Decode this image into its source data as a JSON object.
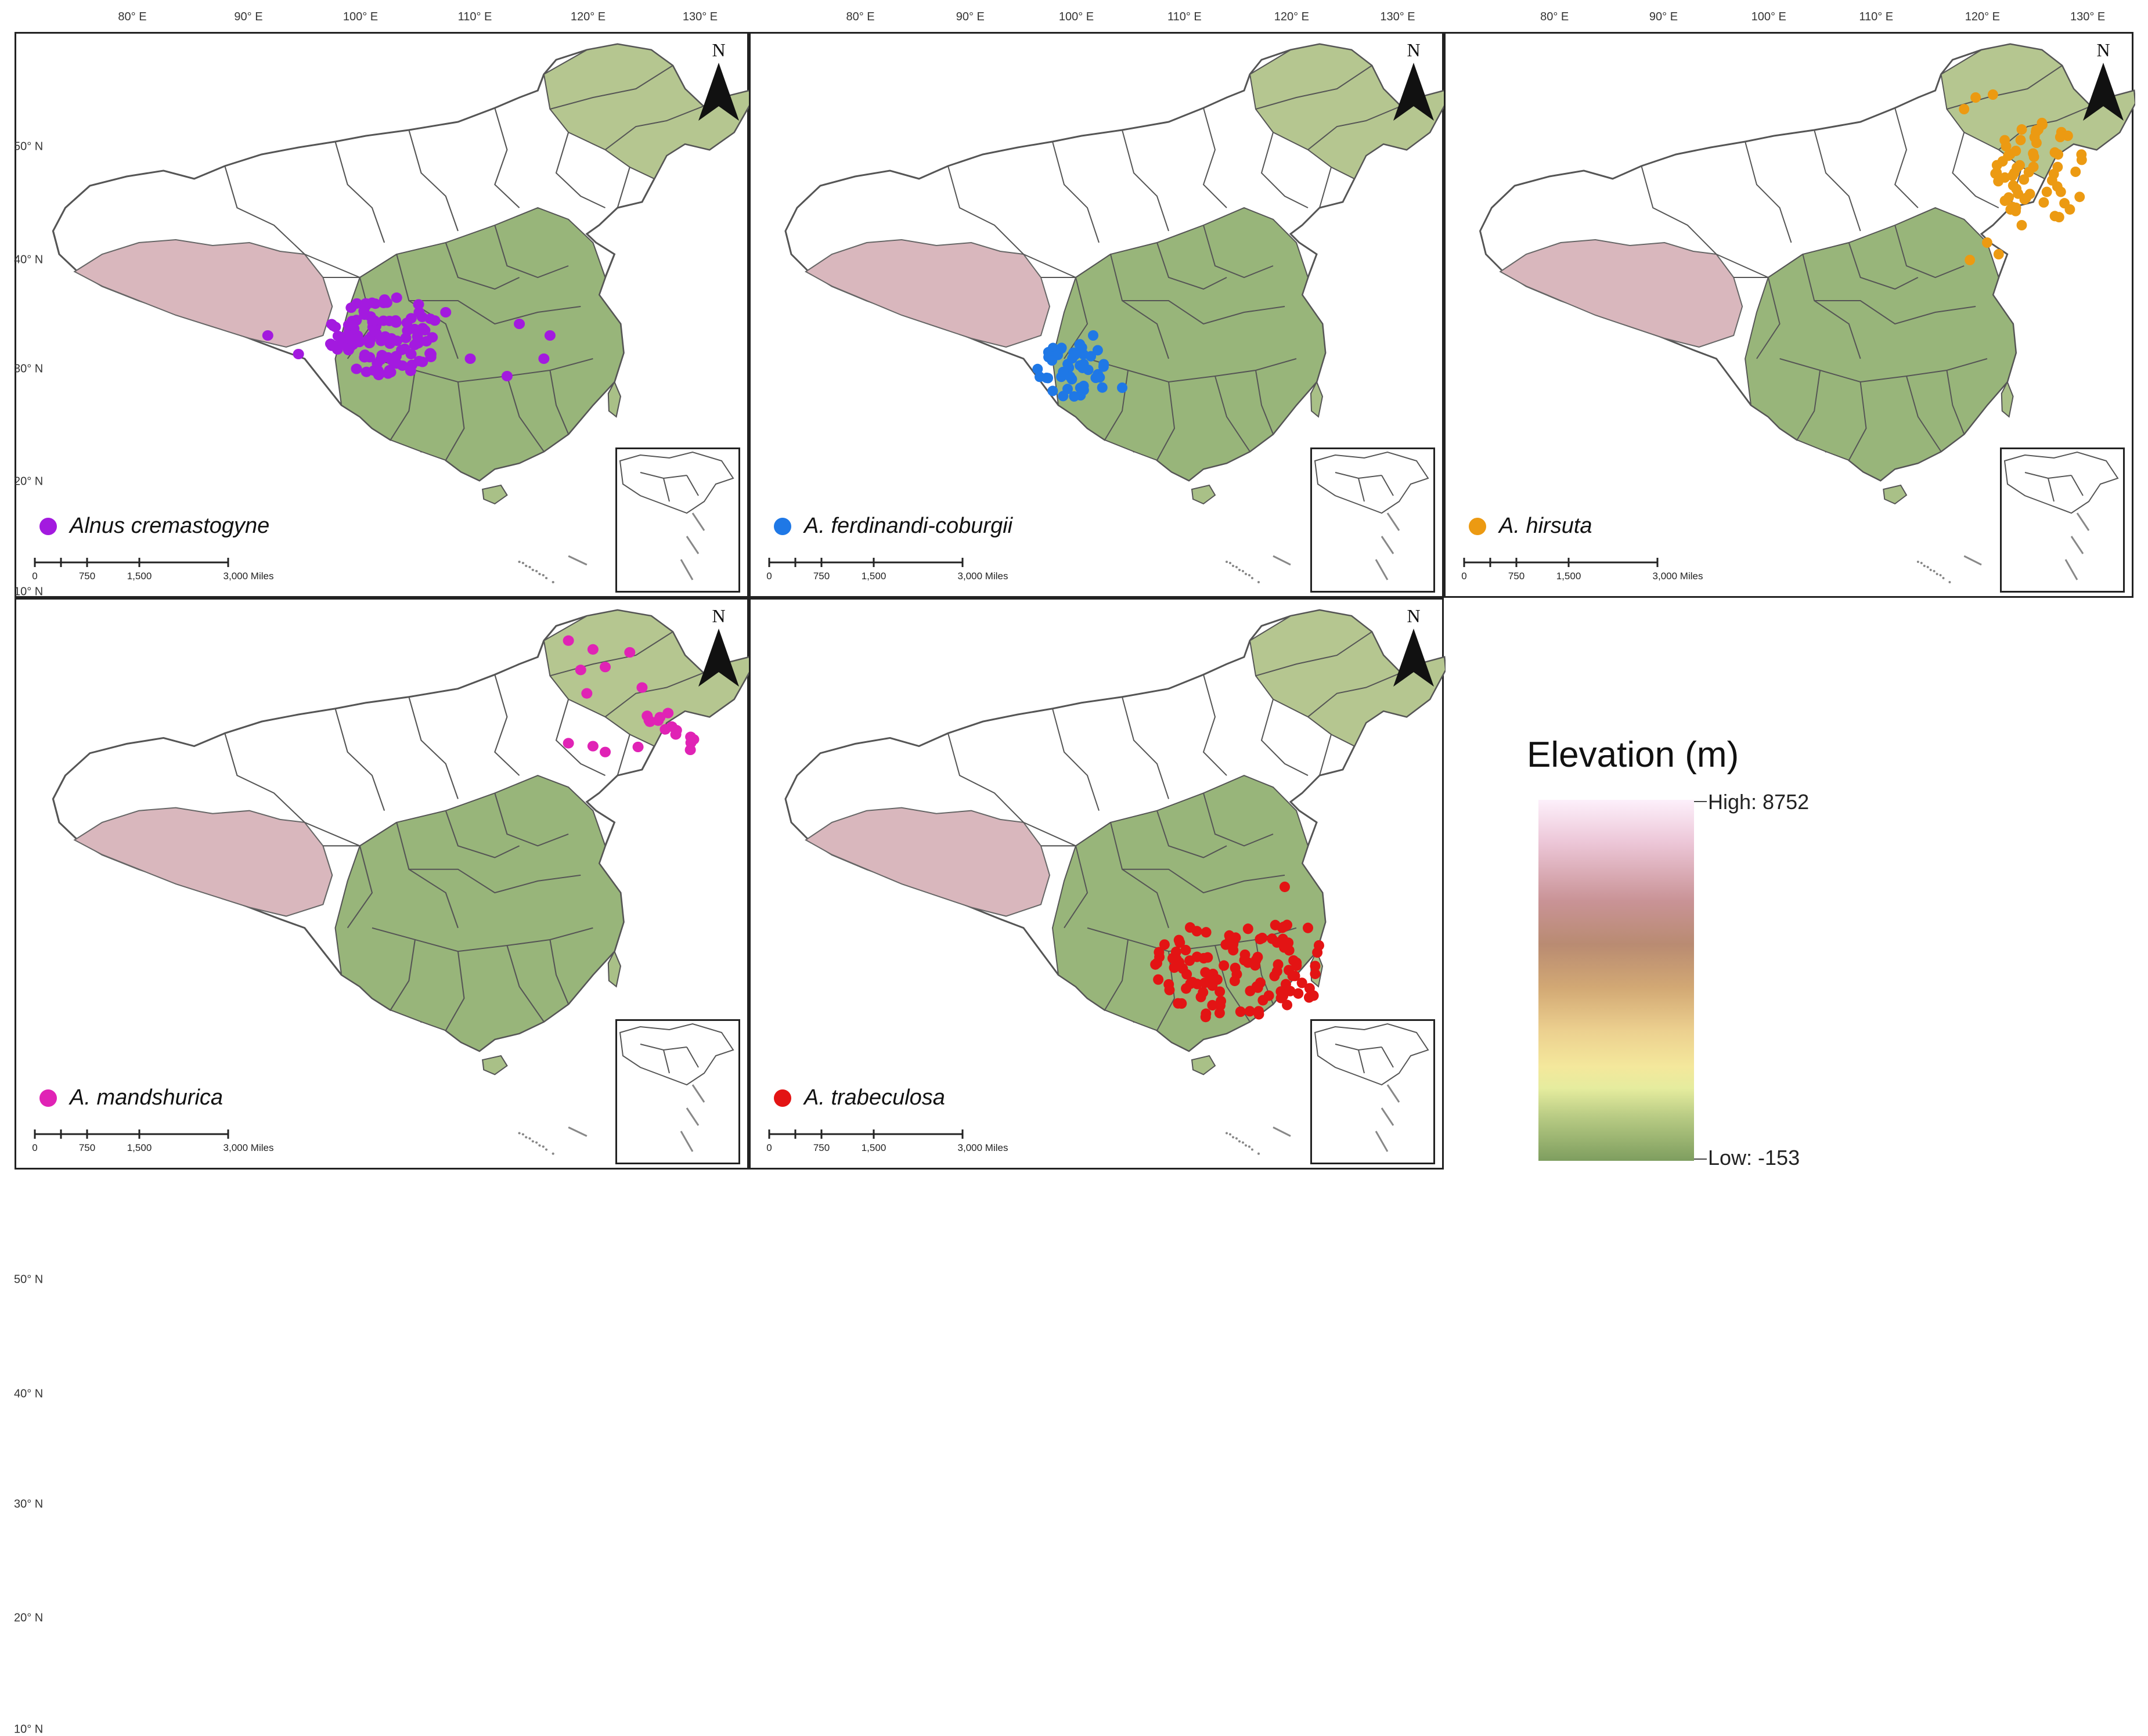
{
  "lon_ticks": [
    "80° E",
    "90° E",
    "100° E",
    "110° E",
    "120° E",
    "130° E"
  ],
  "lat_ticks": [
    "50° N",
    "40° N",
    "30° N",
    "20° N",
    "10° N"
  ],
  "north_label": "N",
  "scale": {
    "labels": [
      "0",
      "750",
      "1,500",
      "3,000 Miles"
    ]
  },
  "panels": [
    {
      "species": "Alnus cremastogyne",
      "color": "#a31adf"
    },
    {
      "species": "A. ferdinandi-coburgii",
      "color": "#1f78e6"
    },
    {
      "species": "A. hirsuta",
      "color": "#ec9a12"
    },
    {
      "species": "A. mandshurica",
      "color": "#e023b5"
    },
    {
      "species": "A. trabeculosa",
      "color": "#e31414"
    }
  ],
  "elevation": {
    "title": "Elevation (m)",
    "high_label": "High: 8752",
    "low_label": "Low: -153"
  }
}
